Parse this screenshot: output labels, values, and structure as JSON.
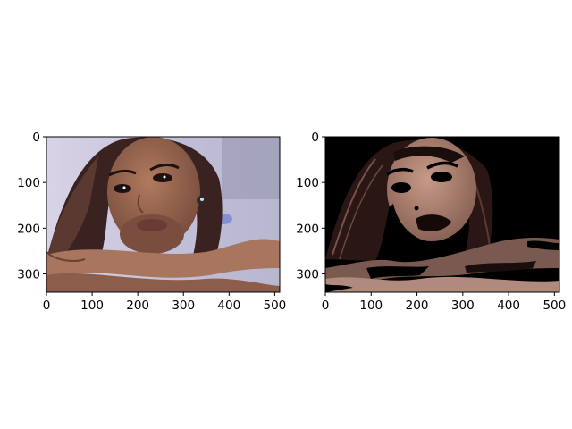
{
  "chart_data": [
    {
      "type": "image",
      "panel": "original",
      "title": "",
      "xlabel": "",
      "ylabel": "",
      "xlim": [
        0,
        511
      ],
      "ylim": [
        340,
        0
      ],
      "xticks": [
        0,
        100,
        200,
        300,
        400,
        500
      ],
      "yticks": [
        0,
        100,
        200,
        300
      ],
      "xtick_labels": [
        "0",
        "100",
        "200",
        "300",
        "400",
        "500"
      ],
      "ytick_labels": [
        "0",
        "100",
        "200",
        "300"
      ],
      "colors": {
        "skin": "#9a6a55",
        "hair": "#3a2220",
        "background": "#c9c6dc"
      }
    },
    {
      "type": "image",
      "panel": "thresholded",
      "title": "",
      "xlabel": "",
      "ylabel": "",
      "xlim": [
        0,
        511
      ],
      "ylim": [
        340,
        0
      ],
      "xticks": [
        0,
        100,
        200,
        300,
        400,
        500
      ],
      "yticks": [
        0,
        100,
        200,
        300
      ],
      "xtick_labels": [
        "0",
        "100",
        "200",
        "300",
        "400",
        "500"
      ],
      "ytick_labels": [
        "0",
        "100",
        "200",
        "300"
      ],
      "colors": {
        "skin": "#a07a6a",
        "hair": "#2a1614",
        "background": "#000000"
      }
    }
  ]
}
